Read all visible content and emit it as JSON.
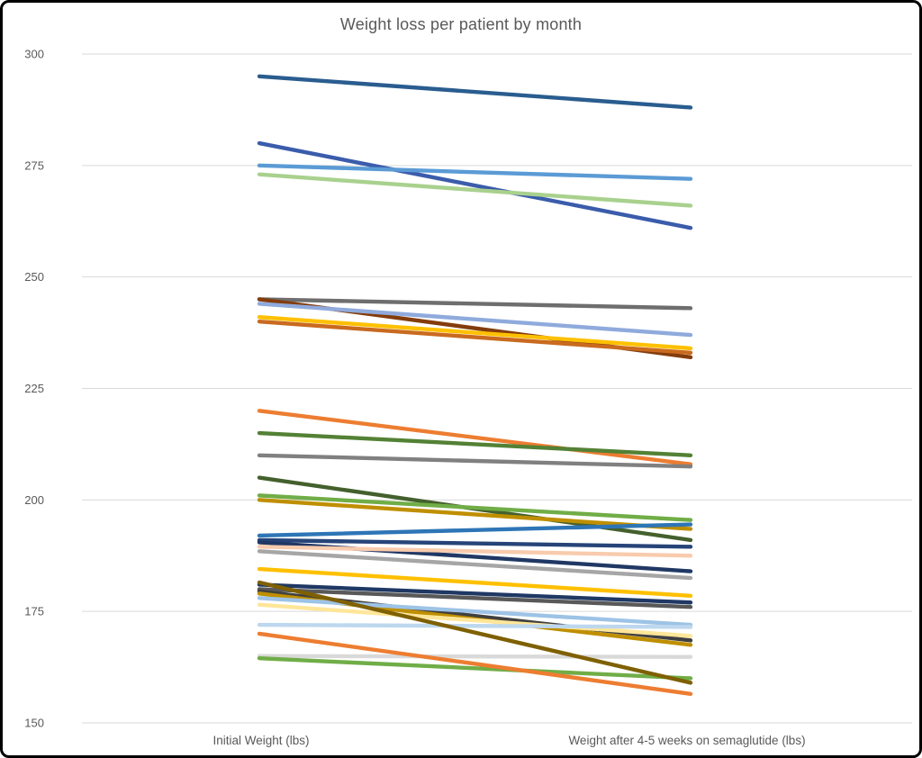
{
  "chart_data": {
    "type": "line",
    "variant": "slopegraph",
    "title": "Weight loss per patient by month",
    "categories": [
      "Initial Weight (lbs)",
      "Weight after 4-5 weeks on semaglutide (lbs)"
    ],
    "xlabel": "",
    "ylabel": "",
    "ylim": [
      150,
      300
    ],
    "yticks": [
      150,
      175,
      200,
      225,
      250,
      275,
      300
    ],
    "grid": "horizontal",
    "legend": "none",
    "series": [
      {
        "color": "#2A5D8F",
        "values": [
          295,
          288
        ]
      },
      {
        "color": "#3B5CAB",
        "values": [
          280,
          261
        ]
      },
      {
        "color": "#5B9BD5",
        "values": [
          275,
          272
        ]
      },
      {
        "color": "#A9D18E",
        "values": [
          273,
          266
        ]
      },
      {
        "color": "#6E6E6E",
        "values": [
          245,
          243
        ]
      },
      {
        "color": "#843C0C",
        "values": [
          245,
          232
        ]
      },
      {
        "color": "#8FAADC",
        "values": [
          244,
          237
        ]
      },
      {
        "color": "#FFC000",
        "values": [
          241,
          234
        ]
      },
      {
        "color": "#C96A1F",
        "values": [
          240,
          233
        ]
      },
      {
        "color": "#ED7D31",
        "values": [
          220,
          208
        ]
      },
      {
        "color": "#538135",
        "values": [
          215,
          210
        ]
      },
      {
        "color": "#808080",
        "values": [
          210,
          207.5
        ]
      },
      {
        "color": "#44602D",
        "values": [
          205,
          191
        ]
      },
      {
        "color": "#70AD47",
        "values": [
          201,
          195.5
        ]
      },
      {
        "color": "#BF8F00",
        "values": [
          200,
          193.5
        ]
      },
      {
        "color": "#2E75B6",
        "values": [
          192,
          194.5
        ]
      },
      {
        "color": "#264478",
        "values": [
          191,
          189.5
        ]
      },
      {
        "color": "#203864",
        "values": [
          190.5,
          184
        ]
      },
      {
        "color": "#F8CBAD",
        "values": [
          189.5,
          187.5
        ]
      },
      {
        "color": "#A6A6A6",
        "values": [
          188.5,
          182.5
        ]
      },
      {
        "color": "#FFC000",
        "values": [
          184.5,
          178.5
        ]
      },
      {
        "color": "#1F3864",
        "values": [
          181,
          177
        ]
      },
      {
        "color": "#595959",
        "values": [
          180,
          176
        ]
      },
      {
        "color": "#404040",
        "values": [
          179.5,
          168.5
        ]
      },
      {
        "color": "#BF8F00",
        "values": [
          179,
          167.5
        ]
      },
      {
        "color": "#9DC3E6",
        "values": [
          178,
          172
        ]
      },
      {
        "color": "#FFE699",
        "values": [
          176.5,
          169.5
        ]
      },
      {
        "color": "#BDD7EE",
        "values": [
          172,
          171.5
        ]
      },
      {
        "color": "#D9D9D9",
        "values": [
          165,
          164.8
        ]
      },
      {
        "color": "#70AD47",
        "values": [
          164.5,
          160
        ]
      },
      {
        "color": "#7F6000",
        "values": [
          181.5,
          159
        ]
      },
      {
        "color": "#ED7D31",
        "values": [
          170,
          156.5
        ]
      }
    ]
  },
  "colors": {
    "text": "#595959",
    "gridline": "#D9D9D9",
    "background": "#FFFFFF",
    "frame": "#000000"
  },
  "layout_values": {
    "tick_font_px": "13"
  }
}
